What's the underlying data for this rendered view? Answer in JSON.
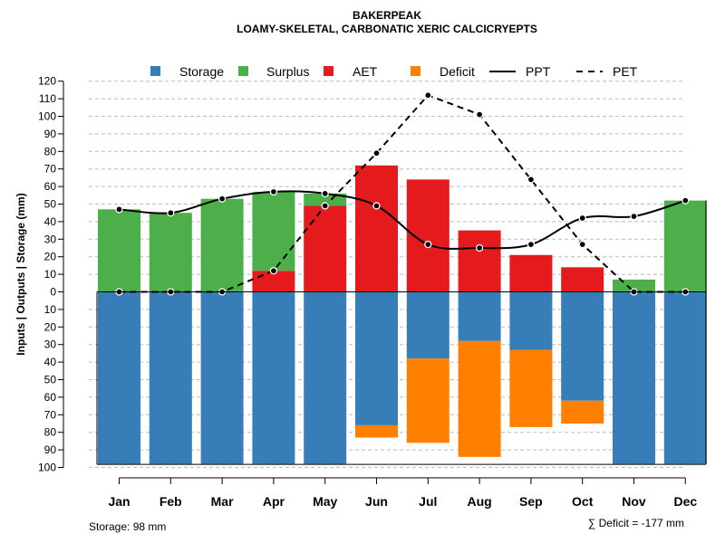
{
  "chart_data": {
    "type": "bar",
    "title": "BAKERPEAK",
    "subtitle": "LOAMY-SKELETAL, CARBONATIC XERIC CALCICRYEPTS",
    "ylabel": "Inputs | Outputs | Storage    (mm)",
    "categories": [
      "Jan",
      "Feb",
      "Mar",
      "Apr",
      "May",
      "Jun",
      "Jul",
      "Aug",
      "Sep",
      "Oct",
      "Nov",
      "Dec"
    ],
    "ylim": [
      -100,
      120
    ],
    "y_ticks": [
      120,
      110,
      100,
      90,
      80,
      70,
      60,
      50,
      40,
      30,
      20,
      10,
      0,
      -10,
      -20,
      -30,
      -40,
      -50,
      -60,
      -70,
      -80,
      -90,
      -100
    ],
    "y_tick_labels": [
      "120",
      "110",
      "100",
      "90",
      "80",
      "70",
      "60",
      "50",
      "40",
      "30",
      "20",
      "10",
      "0",
      "10",
      "20",
      "30",
      "40",
      "50",
      "60",
      "70",
      "80",
      "90",
      "100"
    ],
    "grid": true,
    "legend_position": "top",
    "series": [
      {
        "name": "Surplus",
        "color": "#4daf4a",
        "values": [
          47,
          45,
          53,
          45,
          7,
          0,
          0,
          0,
          0,
          0,
          7,
          52
        ]
      },
      {
        "name": "AET",
        "color": "#e41a1c",
        "values": [
          0,
          0,
          0,
          12,
          49,
          72,
          64,
          35,
          21,
          14,
          0,
          0
        ]
      },
      {
        "name": "Storage",
        "color": "#377eb8",
        "values": [
          -98,
          -98,
          -98,
          -98,
          -98,
          -76,
          -38,
          -28,
          -33,
          -62,
          -98,
          -98
        ]
      },
      {
        "name": "Deficit",
        "color": "#ff7f00",
        "values": [
          0,
          0,
          0,
          0,
          0,
          -7,
          -48,
          -66,
          -44,
          -13,
          0,
          0
        ]
      },
      {
        "name": "PPT",
        "color": "#000000",
        "line": "solid",
        "values": [
          47,
          45,
          53,
          57,
          56,
          49,
          27,
          25,
          27,
          42,
          43,
          52
        ]
      },
      {
        "name": "PET",
        "color": "#000000",
        "line": "dashed",
        "values": [
          0,
          0,
          0,
          12,
          49,
          79,
          112,
          101,
          64,
          27,
          0,
          0
        ]
      }
    ],
    "legend": [
      "Storage",
      "Surplus",
      "AET",
      "Deficit",
      "PPT",
      "PET"
    ],
    "footer_left": "Storage: 98 mm",
    "footer_right": "∑ Deficit = -177 mm"
  }
}
